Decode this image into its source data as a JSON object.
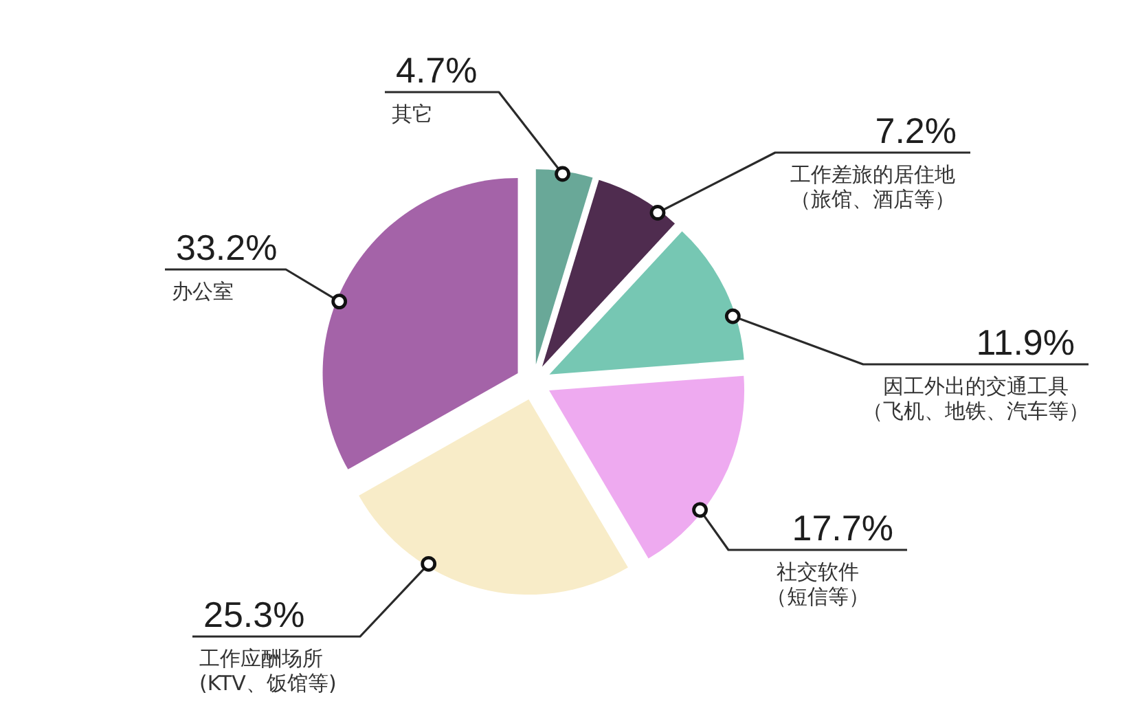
{
  "chart_data": {
    "type": "pie",
    "categories": [
      "其它",
      "工作差旅的居住地（旅馆、酒店等）",
      "因工外出的交通工具（飞机、地铁、汽车等）",
      "社交软件（短信等）",
      "工作应酬场所(KTV、饭馆等)",
      "办公室"
    ],
    "values": [
      4.7,
      7.2,
      11.9,
      17.7,
      25.3,
      33.2
    ],
    "colors": [
      "#69a898",
      "#4f2c4f",
      "#76c7b3",
      "#eeaaf0",
      "#f8ecc8",
      "#a463a8"
    ],
    "value_labels": [
      "4.7%",
      "7.2%",
      "11.9%",
      "17.7%",
      "25.3%",
      "33.2%"
    ]
  }
}
